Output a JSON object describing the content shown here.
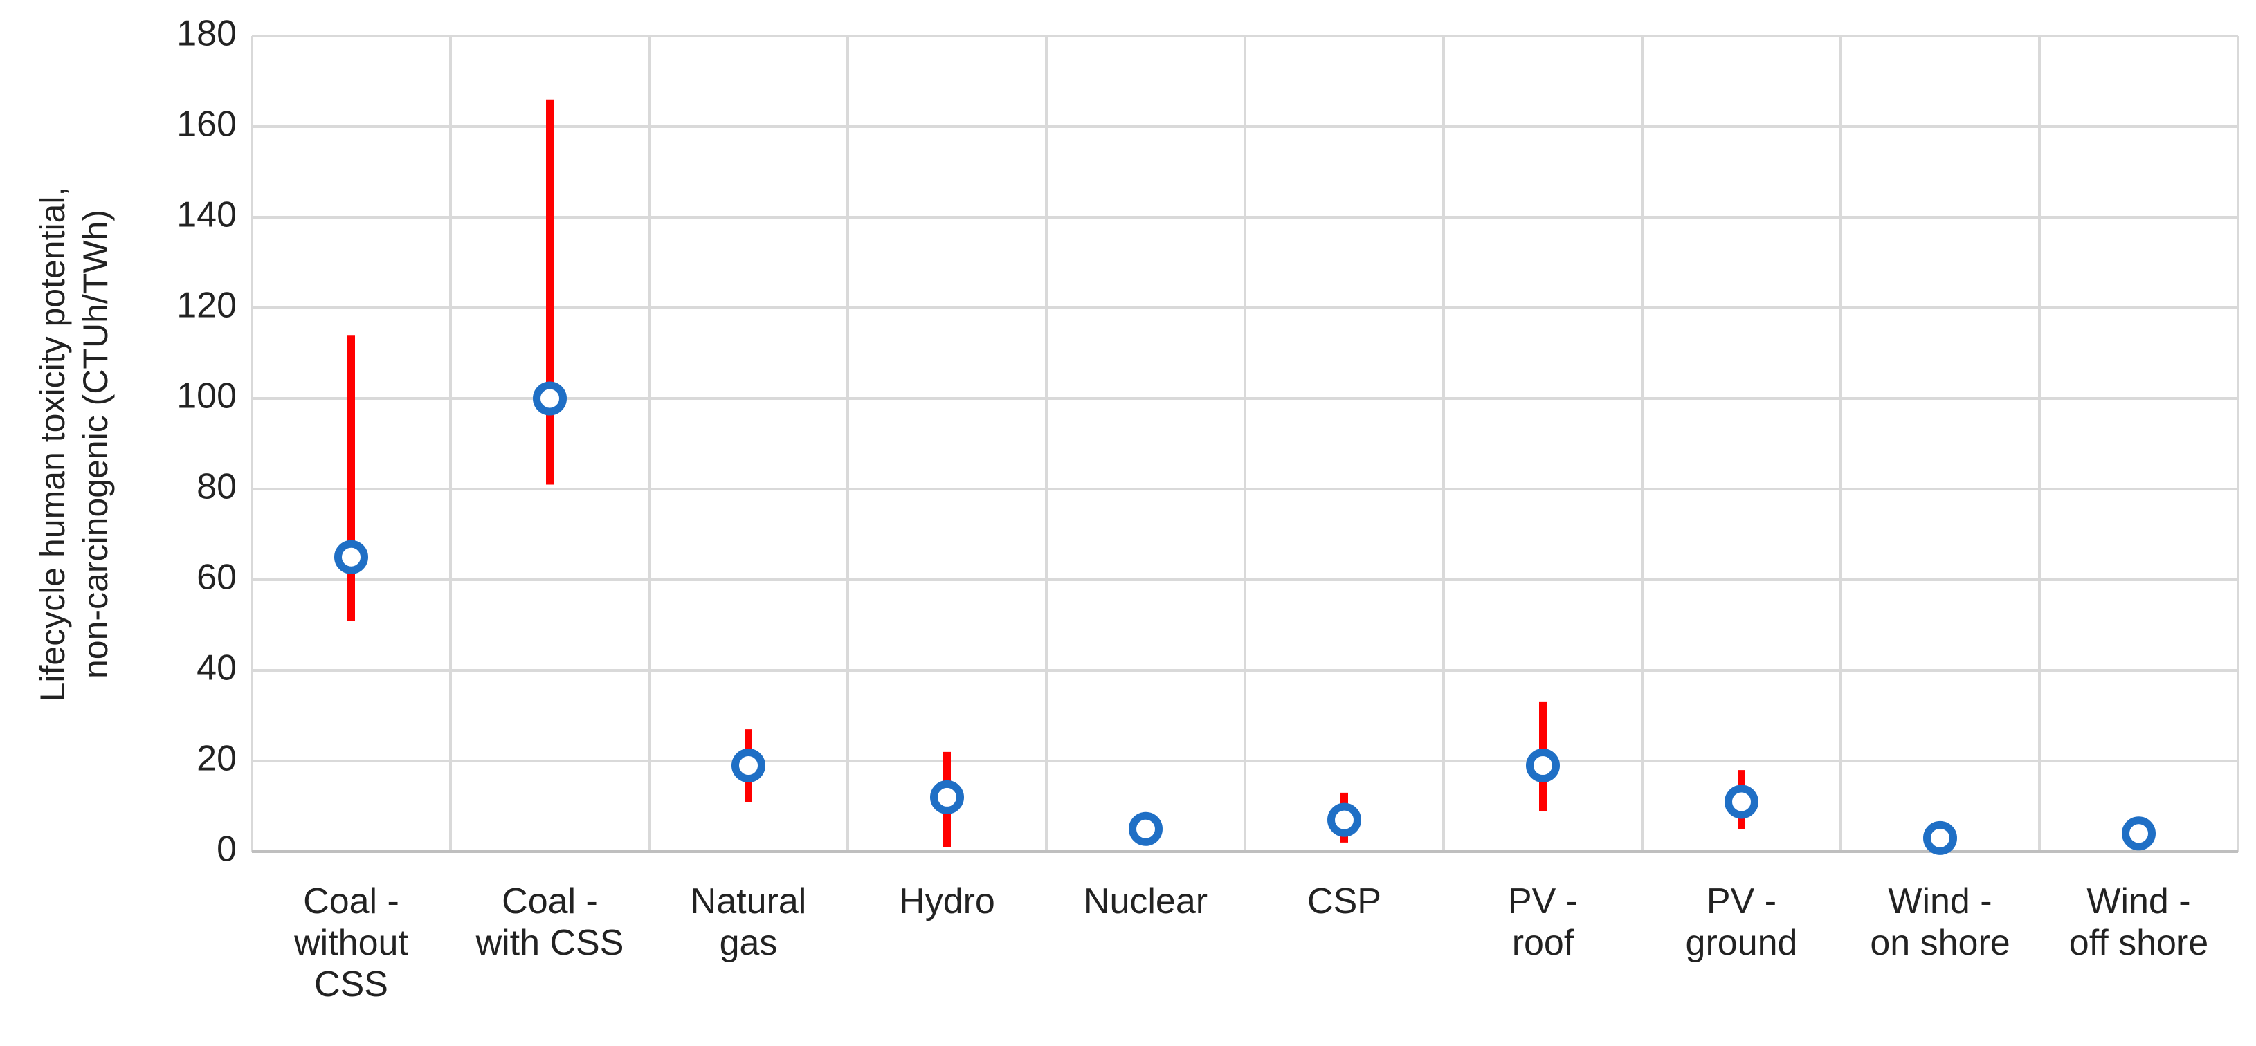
{
  "chart_data": {
    "type": "range-dot",
    "y_label": "Lifecycle human toxicity potential,\nnon-carcinogenic (CTUh/TWh)",
    "categories": [
      "Coal -\nwithout\nCSS",
      "Coal -\nwith CSS",
      "Natural\ngas",
      "Hydro",
      "Nuclear",
      "CSP",
      "PV -\nroof",
      "PV -\nground",
      "Wind -\non shore",
      "Wind -\noff shore"
    ],
    "series": [
      {
        "color": "#1f6fc5",
        "error_color": "#ff0000",
        "values": [
          65,
          100,
          19,
          12,
          5,
          7,
          19,
          11,
          3,
          4
        ],
        "low": [
          51,
          81,
          11,
          1,
          null,
          2,
          9,
          5,
          null,
          null
        ],
        "high": [
          114,
          166,
          27,
          22,
          null,
          13,
          33,
          18,
          null,
          null
        ]
      }
    ],
    "ylim": [
      0,
      180
    ],
    "yticks": [
      0,
      20,
      40,
      60,
      80,
      100,
      120,
      140,
      160,
      180
    ],
    "grid": true
  }
}
